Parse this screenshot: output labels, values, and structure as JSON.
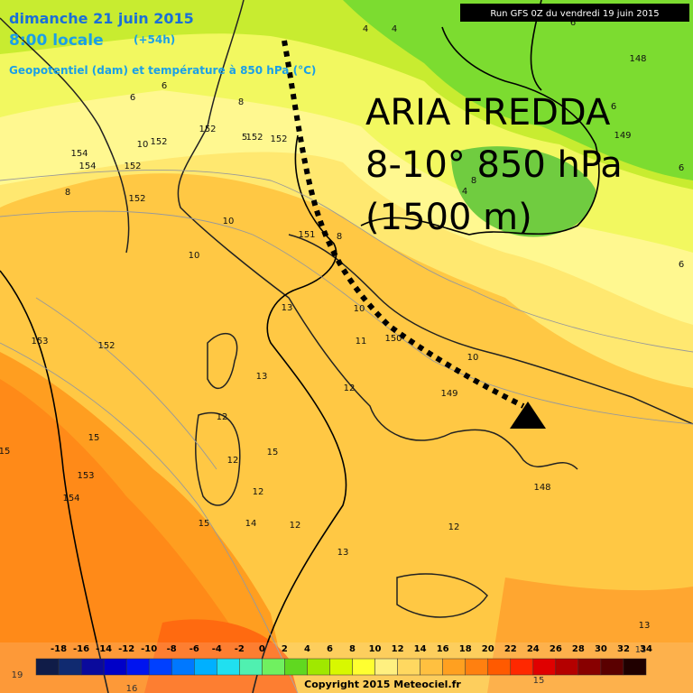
{
  "header": {
    "date": "dimanche 21 juin 2015",
    "time": "8:00 locale",
    "offset": "(+54h)",
    "field": "Geopotentiel (dam) et température à 850 hPa (°C)",
    "run": "Run GFS 0Z du vendredi 19 juin 2015"
  },
  "annotation": {
    "line1": "ARIA FREDDA",
    "line2": "8-10° 850 hPa",
    "line3": "(1500 m)"
  },
  "scale": {
    "labels": [
      -18,
      -16,
      -14,
      -12,
      -10,
      -8,
      -6,
      -4,
      -2,
      0,
      2,
      4,
      6,
      8,
      10,
      12,
      14,
      16,
      18,
      20,
      22,
      24,
      26,
      28,
      30,
      32,
      34
    ],
    "colors": [
      "#101c48",
      "#102a70",
      "#0a0a9c",
      "#0000c8",
      "#0014f0",
      "#0040ff",
      "#0078ff",
      "#00b0ff",
      "#20e0f0",
      "#50f0b0",
      "#70f060",
      "#60d820",
      "#a0e800",
      "#d8f800",
      "#ffff30",
      "#fff080",
      "#ffd860",
      "#ffc040",
      "#ffa020",
      "#ff8010",
      "#ff5a00",
      "#ff2800",
      "#e00000",
      "#b40000",
      "#880000",
      "#5a0000",
      "#200000"
    ]
  },
  "copyright": "Copyright 2015 Meteociel.fr",
  "map_labels": [
    "4",
    "4",
    "6",
    "148",
    "6",
    "6",
    "8",
    "152",
    "5",
    "152",
    "152",
    "10",
    "152",
    "154",
    "154",
    "152",
    "6",
    "149",
    "6",
    "8",
    "152",
    "8",
    "4",
    "10",
    "151",
    "8",
    "10",
    "6",
    "13",
    "10",
    "11",
    "150",
    "153",
    "152",
    "10",
    "13",
    "149",
    "12",
    "12",
    "15",
    "15",
    "153",
    "12",
    "12",
    "148",
    "154",
    "15",
    "14",
    "12",
    "12",
    "13",
    "13",
    "13",
    "19",
    "16",
    "15",
    "15"
  ]
}
